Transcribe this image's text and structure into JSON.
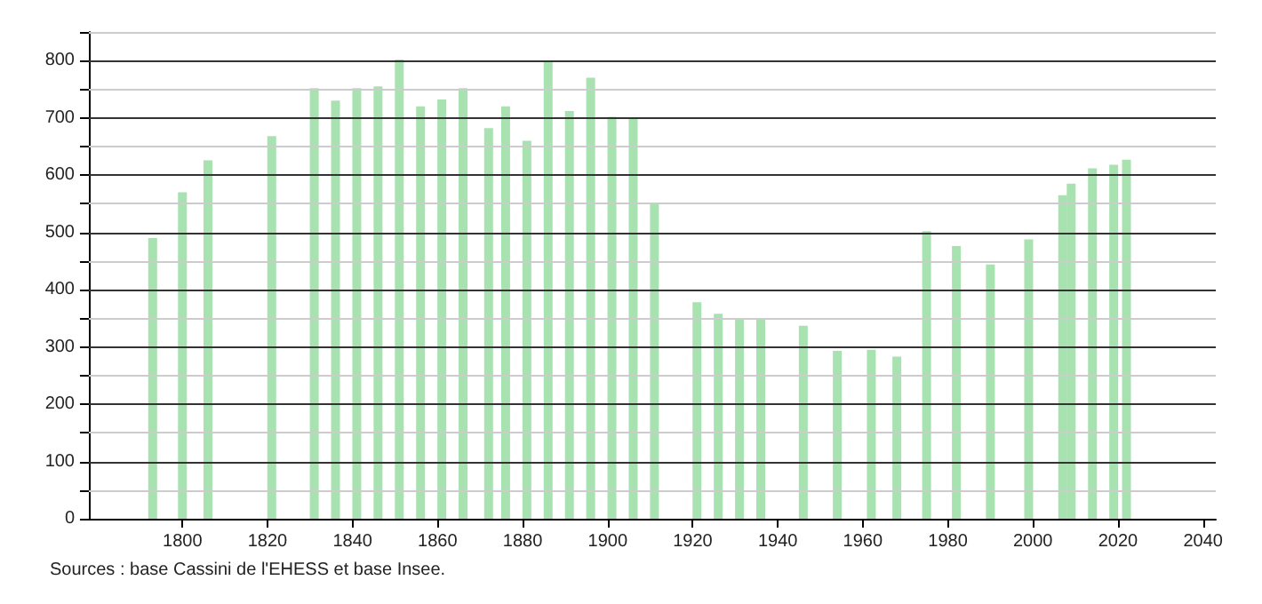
{
  "chart_data": {
    "type": "bar",
    "x": [
      1793,
      1800,
      1806,
      1821,
      1831,
      1836,
      1841,
      1846,
      1851,
      1856,
      1861,
      1866,
      1872,
      1876,
      1881,
      1886,
      1891,
      1896,
      1901,
      1906,
      1911,
      1921,
      1926,
      1931,
      1936,
      1946,
      1954,
      1962,
      1968,
      1975,
      1982,
      1990,
      1999,
      2007,
      2009,
      2014,
      2019,
      2022
    ],
    "values": [
      490,
      570,
      626,
      668,
      752,
      730,
      752,
      755,
      802,
      720,
      732,
      752,
      682,
      720,
      660,
      800,
      712,
      770,
      702,
      698,
      550,
      378,
      358,
      350,
      350,
      337,
      293,
      295,
      283,
      502,
      476,
      444,
      488,
      565,
      585,
      612,
      618,
      627
    ],
    "color": "#a8e2b0",
    "xlim": [
      1778,
      2043
    ],
    "xticks": [
      1800,
      1820,
      1840,
      1860,
      1880,
      1900,
      1920,
      1940,
      1960,
      1980,
      2000,
      2020,
      2040
    ],
    "ylim": [
      0,
      850
    ],
    "yticks": [
      0,
      {
        "value": 50,
        "label": null
      },
      100,
      {
        "value": 150,
        "label": null
      },
      200,
      {
        "value": 250,
        "label": null
      },
      300,
      {
        "value": 350,
        "label": null
      },
      400,
      {
        "value": 450,
        "label": null
      },
      500,
      {
        "value": 550,
        "label": null
      },
      600,
      {
        "value": 650,
        "label": null
      },
      700,
      {
        "value": 750,
        "label": null
      },
      800,
      {
        "value": 850,
        "label": null
      }
    ],
    "grid": "y",
    "annotations": [
      "Sources : base Cassini de l'EHESS et base Insee."
    ]
  }
}
